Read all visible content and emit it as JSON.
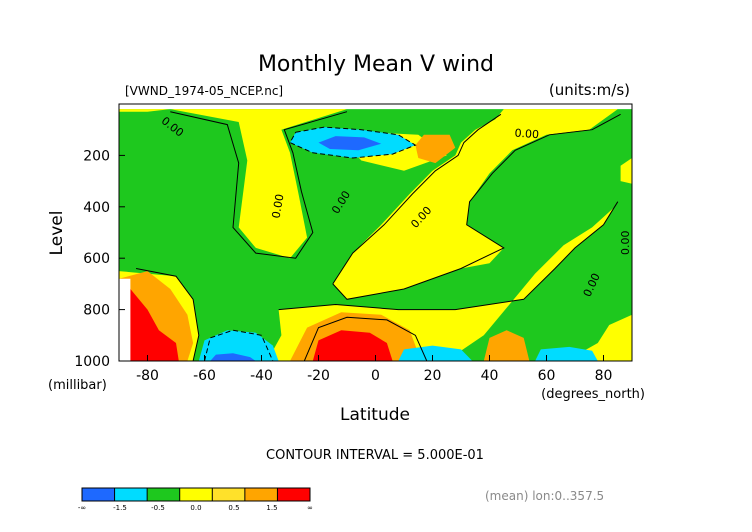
{
  "chart_data": {
    "type": "heatmap",
    "title": "Monthly Mean V wind",
    "dataset_label": "[VWND_1974-05_NCEP.nc]",
    "units_label": "(units:m/s)",
    "xlabel": "Latitude",
    "xunit": "(degrees_north)",
    "ylabel": "Level",
    "yunit": "(millibar)",
    "xlim": [
      -90,
      90
    ],
    "ylim": [
      1000,
      0
    ],
    "x_ticks": [
      -80,
      -60,
      -40,
      -20,
      0,
      20,
      40,
      60,
      80
    ],
    "y_ticks": [
      200,
      400,
      600,
      800,
      1000
    ],
    "contour_interval_text": "CONTOUR INTERVAL = 5.000E-01",
    "mean_text": "(mean) lon:0..357.5",
    "contour_labels": [
      {
        "text": "0.00",
        "lat": -72,
        "level": 100,
        "rot": 38
      },
      {
        "text": "0.00",
        "lat": -33,
        "level": 400,
        "rot": -80
      },
      {
        "text": "0.00",
        "lat": -11,
        "level": 390,
        "rot": -58
      },
      {
        "text": "0.00",
        "lat": 17,
        "level": 450,
        "rot": -48
      },
      {
        "text": "0.00",
        "lat": 53,
        "level": 130,
        "rot": 4
      },
      {
        "text": "0.00",
        "lat": 77,
        "level": 710,
        "rot": -65
      },
      {
        "text": "0.00",
        "lat": 89,
        "level": 540,
        "rot": -90
      }
    ],
    "colorbar": {
      "bins": [
        {
          "color": "#1e69ff",
          "label": "-∞"
        },
        {
          "color": "#00dcff",
          "label": "-1.5"
        },
        {
          "color": "#1ec81e",
          "label": "-0.5"
        },
        {
          "color": "#ffff00",
          "label": "0.0"
        },
        {
          "color": "#ffe12a",
          "label": "0.5"
        },
        {
          "color": "#ffa500",
          "label": "1.5"
        },
        {
          "color": "#ff0000",
          "label": "∞"
        }
      ]
    },
    "regions": [
      {
        "color": "#1ec81e",
        "points": [
          [
            -90,
            20
          ],
          [
            90,
            20
          ],
          [
            90,
            1000
          ],
          [
            -90,
            1000
          ]
        ]
      },
      {
        "color": "#ffff00",
        "points": [
          [
            -72,
            20
          ],
          [
            -48,
            70
          ],
          [
            -45,
            220
          ],
          [
            -48,
            480
          ],
          [
            -42,
            560
          ],
          [
            -30,
            600
          ],
          [
            -24,
            520
          ],
          [
            -27,
            350
          ],
          [
            -30,
            190
          ],
          [
            -33,
            100
          ],
          [
            -10,
            20
          ],
          [
            45,
            20
          ],
          [
            42,
            60
          ],
          [
            35,
            100
          ],
          [
            30,
            150
          ],
          [
            28,
            200
          ],
          [
            20,
            260
          ],
          [
            12,
            350
          ],
          [
            2,
            470
          ],
          [
            -8,
            580
          ],
          [
            -15,
            700
          ],
          [
            -10,
            760
          ],
          [
            10,
            720
          ],
          [
            30,
            640
          ],
          [
            40,
            620
          ],
          [
            45,
            560
          ],
          [
            32,
            470
          ],
          [
            33,
            380
          ],
          [
            40,
            270
          ],
          [
            48,
            180
          ],
          [
            60,
            120
          ],
          [
            75,
            100
          ],
          [
            85,
            20
          ]
        ]
      },
      {
        "color": "#ffff00",
        "points": [
          [
            -10,
            160
          ],
          [
            -2,
            110
          ],
          [
            15,
            120
          ],
          [
            25,
            200
          ],
          [
            10,
            260
          ],
          [
            -5,
            220
          ]
        ]
      },
      {
        "color": "#ffff00",
        "points": [
          [
            -34,
            800
          ],
          [
            -14,
            780
          ],
          [
            8,
            800
          ],
          [
            28,
            800
          ],
          [
            52,
            760
          ],
          [
            63,
            640
          ],
          [
            70,
            560
          ],
          [
            80,
            470
          ],
          [
            84,
            400
          ],
          [
            76,
            480
          ],
          [
            66,
            550
          ],
          [
            56,
            660
          ],
          [
            50,
            740
          ],
          [
            44,
            820
          ],
          [
            38,
            900
          ],
          [
            30,
            960
          ],
          [
            22,
            1000
          ],
          [
            -38,
            1000
          ],
          [
            -33,
            900
          ]
        ]
      },
      {
        "color": "#ffff00",
        "points": [
          [
            -90,
            650
          ],
          [
            -70,
            670
          ],
          [
            -64,
            760
          ],
          [
            -62,
            900
          ],
          [
            -64,
            1000
          ],
          [
            -90,
            1000
          ]
        ]
      },
      {
        "color": "#ffff00",
        "points": [
          [
            62,
            1000
          ],
          [
            70,
            980
          ],
          [
            78,
            930
          ],
          [
            82,
            860
          ],
          [
            90,
            820
          ],
          [
            90,
            1000
          ]
        ]
      },
      {
        "color": "#ffff00",
        "points": [
          [
            86,
            240
          ],
          [
            90,
            210
          ],
          [
            90,
            310
          ],
          [
            86,
            300
          ]
        ]
      },
      {
        "color": "#ffa500",
        "points": [
          [
            -90,
            680
          ],
          [
            -80,
            650
          ],
          [
            -72,
            720
          ],
          [
            -66,
            820
          ],
          [
            -64,
            930
          ],
          [
            -66,
            1000
          ],
          [
            -90,
            1000
          ]
        ]
      },
      {
        "color": "#ffa500",
        "points": [
          [
            -30,
            1000
          ],
          [
            -24,
            870
          ],
          [
            -12,
            810
          ],
          [
            2,
            820
          ],
          [
            12,
            880
          ],
          [
            16,
            1000
          ]
        ]
      },
      {
        "color": "#ffa500",
        "points": [
          [
            38,
            1000
          ],
          [
            40,
            910
          ],
          [
            46,
            880
          ],
          [
            52,
            910
          ],
          [
            54,
            1000
          ]
        ]
      },
      {
        "color": "#ffa500",
        "points": [
          [
            14,
            160
          ],
          [
            17,
            120
          ],
          [
            26,
            120
          ],
          [
            28,
            170
          ],
          [
            21,
            230
          ],
          [
            15,
            210
          ]
        ]
      },
      {
        "color": "#ff0000",
        "points": [
          [
            -90,
            740
          ],
          [
            -86,
            720
          ],
          [
            -80,
            800
          ],
          [
            -76,
            880
          ],
          [
            -70,
            930
          ],
          [
            -69,
            1000
          ],
          [
            -90,
            1000
          ]
        ]
      },
      {
        "color": "#ff0000",
        "points": [
          [
            -22,
            1000
          ],
          [
            -20,
            920
          ],
          [
            -12,
            880
          ],
          [
            -2,
            890
          ],
          [
            4,
            930
          ],
          [
            6,
            1000
          ]
        ]
      },
      {
        "color": "#00dcff",
        "points": [
          [
            -28,
            110
          ],
          [
            -18,
            90
          ],
          [
            -5,
            100
          ],
          [
            8,
            120
          ],
          [
            14,
            160
          ],
          [
            6,
            195
          ],
          [
            -8,
            210
          ],
          [
            -22,
            190
          ],
          [
            -30,
            150
          ]
        ]
      },
      {
        "color": "#1e69ff",
        "points": [
          [
            -20,
            150
          ],
          [
            -14,
            125
          ],
          [
            -4,
            130
          ],
          [
            2,
            155
          ],
          [
            -6,
            180
          ],
          [
            -16,
            175
          ]
        ]
      },
      {
        "color": "#00dcff",
        "points": [
          [
            -62,
            1000
          ],
          [
            -60,
            920
          ],
          [
            -52,
            880
          ],
          [
            -42,
            890
          ],
          [
            -36,
            940
          ],
          [
            -34,
            1000
          ]
        ]
      },
      {
        "color": "#1e69ff",
        "points": [
          [
            -58,
            1000
          ],
          [
            -56,
            975
          ],
          [
            -50,
            970
          ],
          [
            -44,
            985
          ],
          [
            -42,
            1000
          ]
        ]
      },
      {
        "color": "#00dcff",
        "points": [
          [
            8,
            1000
          ],
          [
            10,
            955
          ],
          [
            20,
            940
          ],
          [
            30,
            955
          ],
          [
            34,
            1000
          ]
        ]
      },
      {
        "color": "#00dcff",
        "points": [
          [
            56,
            1000
          ],
          [
            58,
            955
          ],
          [
            68,
            945
          ],
          [
            76,
            960
          ],
          [
            78,
            1000
          ]
        ]
      },
      {
        "color": "#ffff00",
        "points": [
          [
            -90,
            20
          ],
          [
            -72,
            20
          ],
          [
            -80,
            30
          ],
          [
            -90,
            30
          ]
        ]
      },
      {
        "color": "#ffffff",
        "points": [
          [
            -90,
            680
          ],
          [
            -86,
            680
          ],
          [
            -86,
            1000
          ],
          [
            -90,
            1000
          ]
        ]
      }
    ],
    "contour_lines": [
      {
        "dashed": false,
        "points": [
          [
            -72,
            30
          ],
          [
            -52,
            80
          ],
          [
            -48,
            230
          ],
          [
            -50,
            480
          ],
          [
            -42,
            580
          ],
          [
            -28,
            600
          ],
          [
            -22,
            500
          ],
          [
            -26,
            340
          ],
          [
            -29,
            190
          ],
          [
            -32,
            100
          ],
          [
            -10,
            30
          ]
        ]
      },
      {
        "dashed": false,
        "points": [
          [
            -15,
            700
          ],
          [
            -8,
            580
          ],
          [
            3,
            470
          ],
          [
            13,
            350
          ],
          [
            21,
            260
          ],
          [
            29,
            200
          ],
          [
            31,
            150
          ],
          [
            36,
            100
          ],
          [
            44,
            40
          ]
        ]
      },
      {
        "dashed": false,
        "points": [
          [
            -15,
            700
          ],
          [
            -10,
            760
          ],
          [
            10,
            720
          ],
          [
            30,
            640
          ],
          [
            45,
            560
          ],
          [
            32,
            470
          ],
          [
            33,
            380
          ],
          [
            41,
            270
          ],
          [
            49,
            180
          ],
          [
            61,
            120
          ],
          [
            76,
            100
          ],
          [
            86,
            40
          ]
        ]
      },
      {
        "dashed": false,
        "points": [
          [
            -34,
            800
          ],
          [
            -14,
            780
          ],
          [
            8,
            800
          ],
          [
            28,
            800
          ],
          [
            52,
            760
          ],
          [
            63,
            640
          ],
          [
            70,
            560
          ],
          [
            80,
            470
          ],
          [
            85,
            380
          ]
        ]
      },
      {
        "dashed": false,
        "points": [
          [
            -64,
            1000
          ],
          [
            -62,
            900
          ],
          [
            -64,
            760
          ],
          [
            -70,
            670
          ],
          [
            -84,
            640
          ]
        ]
      },
      {
        "dashed": false,
        "points": [
          [
            -25,
            1000
          ],
          [
            -20,
            870
          ],
          [
            -10,
            830
          ],
          [
            4,
            840
          ],
          [
            14,
            900
          ],
          [
            18,
            1000
          ]
        ]
      },
      {
        "dashed": true,
        "points": [
          [
            -28,
            110
          ],
          [
            -18,
            90
          ],
          [
            -5,
            100
          ],
          [
            8,
            120
          ],
          [
            14,
            160
          ],
          [
            6,
            195
          ],
          [
            -8,
            210
          ],
          [
            -22,
            190
          ],
          [
            -30,
            150
          ],
          [
            -28,
            110
          ]
        ]
      },
      {
        "dashed": true,
        "points": [
          [
            -60,
            1000
          ],
          [
            -58,
            910
          ],
          [
            -50,
            880
          ],
          [
            -40,
            900
          ],
          [
            -36,
            1000
          ]
        ]
      }
    ]
  }
}
